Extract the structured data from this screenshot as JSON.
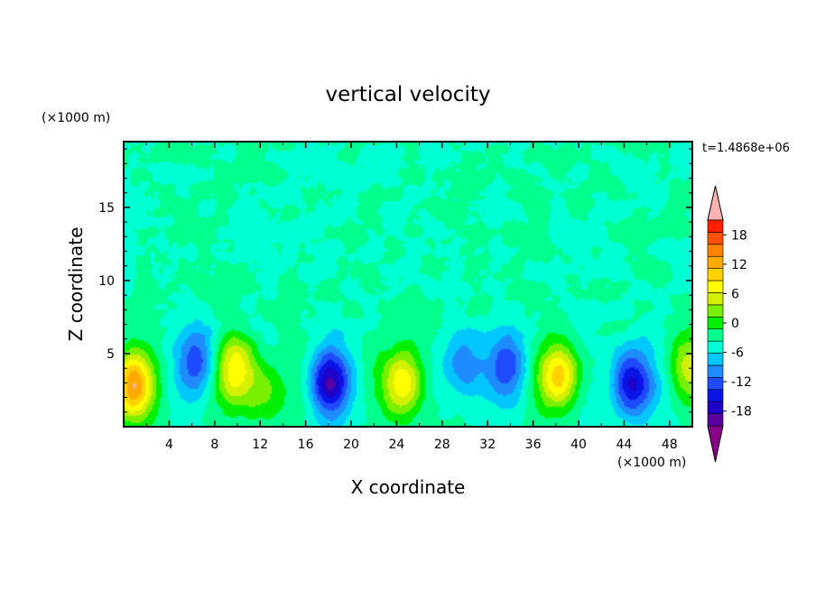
{
  "chart_data": {
    "type": "heatmap",
    "title": "vertical velocity",
    "xlabel": "X coordinate",
    "ylabel": "Z coordinate",
    "x_unit": "(×1000 m)",
    "y_unit": "(×1000 m)",
    "time_label": "t=1.4868e+06",
    "xlim": [
      0,
      50
    ],
    "ylim": [
      0,
      19.5
    ],
    "x_ticks": [
      4,
      8,
      12,
      16,
      20,
      24,
      28,
      32,
      36,
      40,
      44,
      48
    ],
    "y_ticks": [
      5,
      10,
      15
    ],
    "colorbar": {
      "min": -21,
      "max": 21,
      "step": 3,
      "tick_values": [
        18,
        12,
        6,
        0,
        -6,
        -12,
        -18
      ],
      "tick_labels": [
        "18",
        "12",
        "6",
        "0",
        "-6",
        "-12",
        "-18"
      ],
      "colors": [
        "#8b008b",
        "#5a00a0",
        "#1e00c8",
        "#0a14e6",
        "#1e4bff",
        "#1e8cff",
        "#00c8ff",
        "#00ffd2",
        "#00ff8c",
        "#00f000",
        "#78f000",
        "#d2f000",
        "#ffff00",
        "#ffd200",
        "#ffaa00",
        "#ff8200",
        "#ff5000",
        "#ff1e00",
        "#ffb4b4"
      ]
    },
    "features": [
      {
        "x": 0.8,
        "z": 2.8,
        "w": 20,
        "kind": "updraft"
      },
      {
        "x": 6.5,
        "z": 4.5,
        "w": -10,
        "kind": "downdraft"
      },
      {
        "x": 9.8,
        "z": 4.0,
        "w": 13,
        "kind": "updraft"
      },
      {
        "x": 12.3,
        "z": 2.5,
        "w": 8,
        "kind": "updraft"
      },
      {
        "x": 18.0,
        "z": 3.0,
        "w": -17,
        "kind": "downdraft"
      },
      {
        "x": 24.8,
        "z": 3.0,
        "w": 15,
        "kind": "updraft"
      },
      {
        "x": 29.8,
        "z": 4.2,
        "w": -10,
        "kind": "downdraft"
      },
      {
        "x": 33.8,
        "z": 4.2,
        "w": -10,
        "kind": "downdraft"
      },
      {
        "x": 38.4,
        "z": 3.5,
        "w": 16,
        "kind": "updraft"
      },
      {
        "x": 44.6,
        "z": 3.0,
        "w": -17,
        "kind": "downdraft"
      },
      {
        "x": 49.6,
        "z": 4.2,
        "w": 9,
        "kind": "updraft"
      }
    ]
  }
}
